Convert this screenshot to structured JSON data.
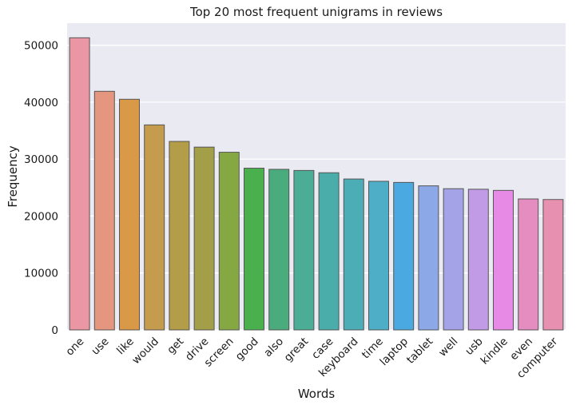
{
  "chart_data": {
    "type": "bar",
    "title": "Top 20 most frequent unigrams in reviews",
    "xlabel": "Words",
    "ylabel": "Frequency",
    "categories": [
      "one",
      "use",
      "like",
      "would",
      "get",
      "drive",
      "screen",
      "good",
      "also",
      "great",
      "case",
      "keyboard",
      "time",
      "laptop",
      "tablet",
      "well",
      "usb",
      "kindle",
      "even",
      "computer"
    ],
    "values": [
      51300,
      41900,
      40500,
      36000,
      33100,
      32100,
      31200,
      28400,
      28200,
      28000,
      27600,
      26500,
      26100,
      25900,
      25300,
      24800,
      24700,
      24500,
      23000,
      22900
    ],
    "colors": [
      "#ea96a3",
      "#e5967e",
      "#d99947",
      "#c59c4d",
      "#b49d48",
      "#a39f48",
      "#86a842",
      "#49b04d",
      "#4aab7c",
      "#4bad96",
      "#4aada9",
      "#4cadb7",
      "#4eaec7",
      "#4aa9e0",
      "#8ca8e6",
      "#a5a3e8",
      "#c29be7",
      "#e68ae6",
      "#e58dc0",
      "#e790af"
    ],
    "yticks": [
      0,
      10000,
      20000,
      30000,
      40000,
      50000
    ],
    "ylim": [
      0,
      53865
    ],
    "grid": true,
    "legend": "none"
  }
}
